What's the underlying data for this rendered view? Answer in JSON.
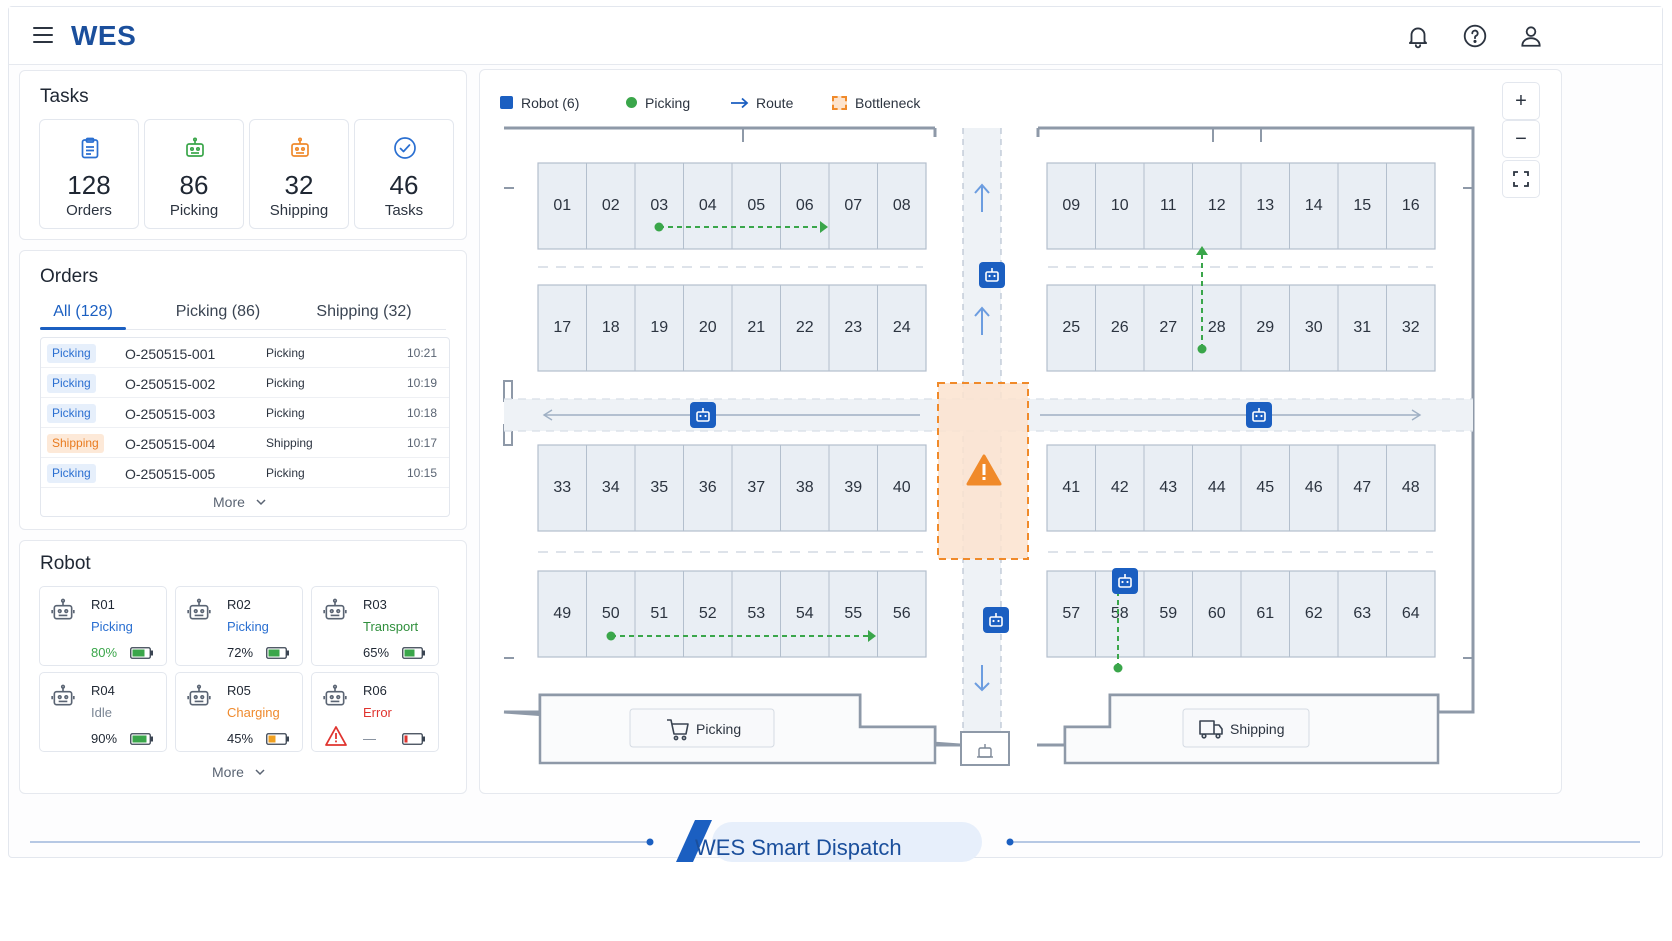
{
  "header": {
    "brand": "WES",
    "icons": [
      "menu-icon",
      "bell-icon",
      "help-icon",
      "user-icon"
    ]
  },
  "tasks": {
    "title": "Tasks",
    "cards": [
      {
        "value": "128",
        "label": "Orders",
        "icon": "clipboard-icon",
        "color": "#2a6fd1"
      },
      {
        "value": "86",
        "label": "Picking",
        "icon": "robot-icon",
        "color": "#3aa64a"
      },
      {
        "value": "32",
        "label": "Shipping",
        "icon": "robot-icon",
        "color": "#ef8a2d"
      },
      {
        "value": "46",
        "label": "Tasks",
        "icon": "check-circle-icon",
        "color": "#2a6fd1"
      }
    ]
  },
  "orders": {
    "title": "Orders",
    "tabs": [
      "All (128)",
      "Picking (86)",
      "Shipping (32)"
    ],
    "rows": [
      {
        "badge": "Picking",
        "id": "O-250515-001",
        "status": "Picking",
        "time": "10:21"
      },
      {
        "badge": "Picking",
        "id": "O-250515-002",
        "status": "Picking",
        "time": "10:19"
      },
      {
        "badge": "Picking",
        "id": "O-250515-003",
        "status": "Picking",
        "time": "10:18"
      },
      {
        "badge": "Shipping",
        "id": "O-250515-004",
        "status": "Shipping",
        "time": "10:17"
      },
      {
        "badge": "Picking",
        "id": "O-250515-005",
        "status": "Picking",
        "time": "10:15"
      }
    ],
    "more": "More"
  },
  "robots": {
    "title": "Robot",
    "items": [
      {
        "name": "R01",
        "state": "Picking",
        "state_color": "#2a6fd1",
        "pct": "80%",
        "pct_color": "#3aa64a",
        "battery": 0.8,
        "battery_color": "#3aa64a"
      },
      {
        "name": "R02",
        "state": "Picking",
        "state_color": "#2a6fd1",
        "pct": "72%",
        "pct_color": "#1f2733",
        "battery": 0.72,
        "battery_color": "#3aa64a"
      },
      {
        "name": "R03",
        "state": "Transport",
        "state_color": "#2f8f3c",
        "pct": "65%",
        "pct_color": "#1f2733",
        "battery": 0.65,
        "battery_color": "#3aa64a"
      },
      {
        "name": "R04",
        "state": "Idle",
        "state_color": "#7a8594",
        "pct": "90%",
        "pct_color": "#1f2733",
        "battery": 0.9,
        "battery_color": "#3aa64a"
      },
      {
        "name": "R05",
        "state": "Charging",
        "state_color": "#ef8a2d",
        "pct": "45%",
        "pct_color": "#1f2733",
        "battery": 0.45,
        "battery_color": "#f0a020"
      },
      {
        "name": "R06",
        "state": "Error",
        "state_color": "#e0342f",
        "pct": "—",
        "pct_color": "#7a8594",
        "battery": 0.2,
        "battery_color": "#e0342f"
      }
    ],
    "more": "More"
  },
  "map": {
    "legend": [
      {
        "label": "Robot (6)",
        "icon": "robot-square-icon"
      },
      {
        "label": "Picking",
        "icon": "green-dot-icon"
      },
      {
        "label": "Route",
        "icon": "arrow-right-icon"
      },
      {
        "label": "Bottleneck",
        "icon": "dashed-square-icon"
      }
    ],
    "zoom": {
      "in": "+",
      "out": "−"
    },
    "shelf_rows": [
      {
        "left": [
          "01",
          "02",
          "03",
          "04",
          "05",
          "06",
          "07",
          "08"
        ],
        "right": [
          "09",
          "10",
          "11",
          "12",
          "13",
          "14",
          "15",
          "16"
        ]
      },
      {
        "left": [
          "17",
          "18",
          "19",
          "20",
          "21",
          "22",
          "23",
          "24"
        ],
        "right": [
          "25",
          "26",
          "27",
          "28",
          "29",
          "30",
          "31",
          "32"
        ]
      },
      {
        "left": [
          "33",
          "34",
          "35",
          "36",
          "37",
          "38",
          "39",
          "40"
        ],
        "right": [
          "41",
          "42",
          "43",
          "44",
          "45",
          "46",
          "47",
          "48"
        ]
      },
      {
        "left": [
          "49",
          "50",
          "51",
          "52",
          "53",
          "54",
          "55",
          "56"
        ],
        "right": [
          "57",
          "58",
          "59",
          "60",
          "61",
          "62",
          "63",
          "64"
        ]
      }
    ],
    "stations": {
      "picking": "Picking",
      "shipping": "Shipping"
    }
  },
  "footer": {
    "title": "WES Smart Dispatch"
  }
}
